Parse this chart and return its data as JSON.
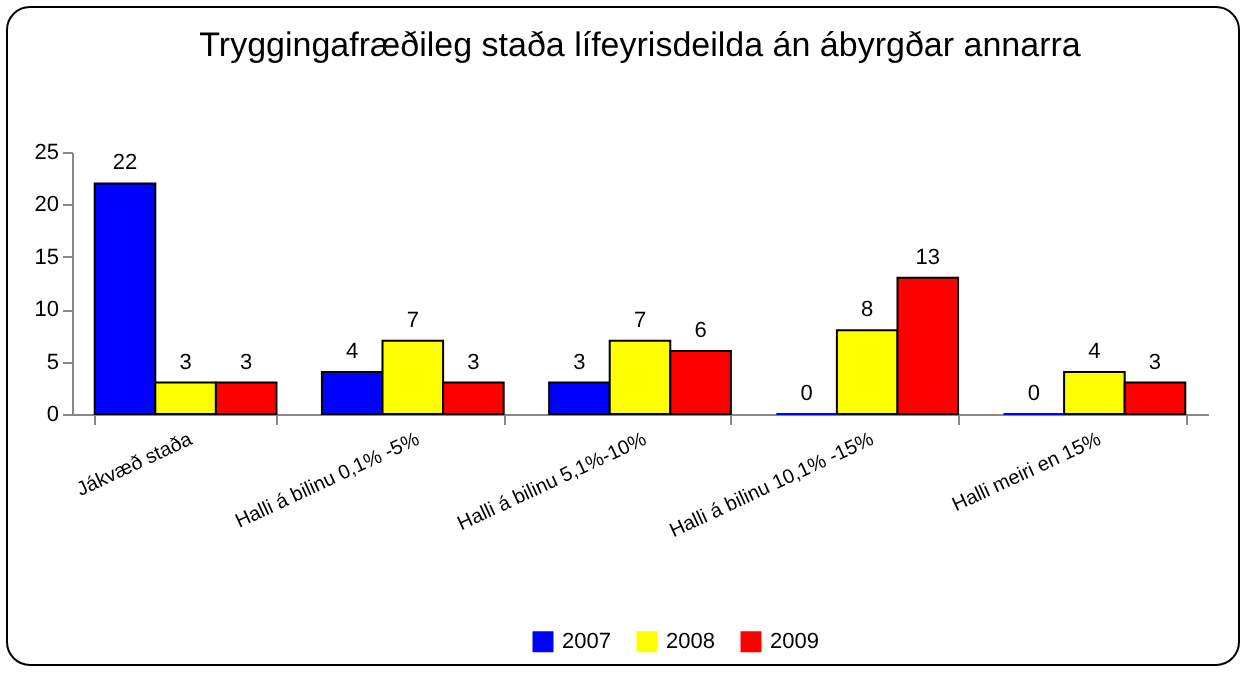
{
  "chart_data": {
    "type": "bar",
    "title": "Tryggingafræðileg staða lífeyrisdeilda án ábyrgðar annarra",
    "categories": [
      "Jákvæð staða",
      "Halli á bilinu 0,1% -5%",
      "Halli á bilinu 5,1%-10%",
      "Halli á bilinu 10,1% -15%",
      "Halli meiri en 15%"
    ],
    "series": [
      {
        "name": "2007",
        "color": "#0000ff",
        "values": [
          22,
          4,
          3,
          0,
          0
        ]
      },
      {
        "name": "2008",
        "color": "#ffff00",
        "values": [
          3,
          7,
          7,
          8,
          4
        ]
      },
      {
        "name": "2009",
        "color": "#ff0000",
        "values": [
          3,
          3,
          6,
          13,
          3
        ]
      }
    ],
    "ylim": [
      0,
      25
    ],
    "yticks": [
      0,
      5,
      10,
      15,
      20,
      25
    ],
    "grid": false,
    "legend": "bottom",
    "data_labels": true
  }
}
